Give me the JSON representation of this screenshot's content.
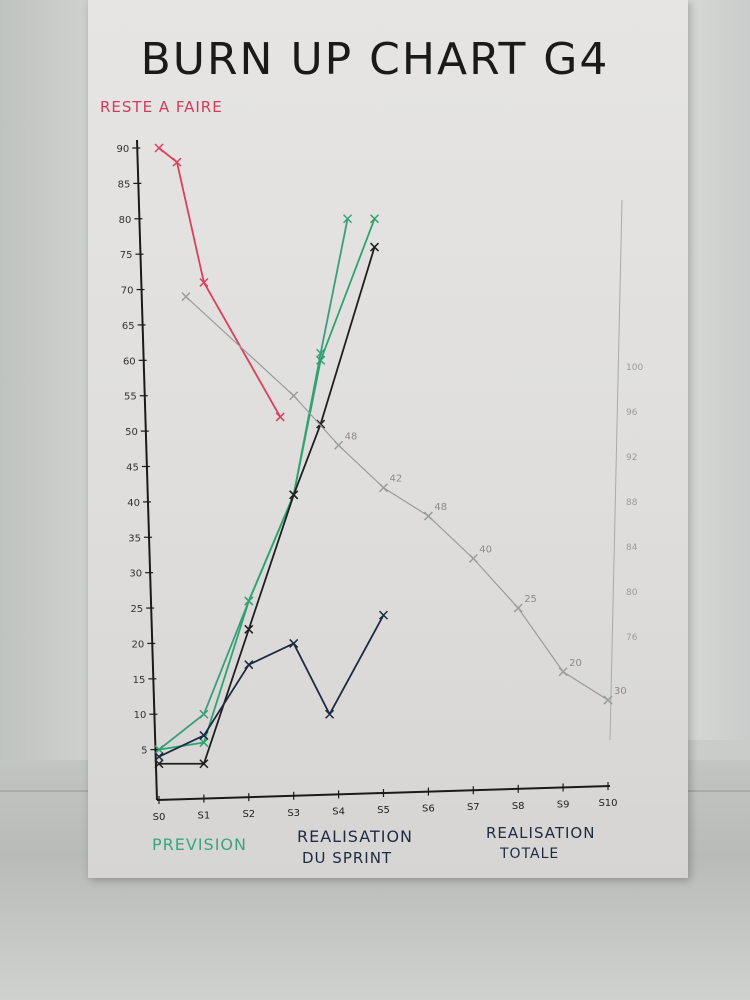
{
  "chart_data": {
    "type": "line",
    "title": "BURN UP CHART G4",
    "left_axis_label": "RESTE A FAIRE",
    "x": [
      "S0",
      "S1",
      "S2",
      "S3",
      "S4",
      "S5",
      "S6",
      "S7",
      "S8",
      "S9",
      "S10"
    ],
    "y_ticks": [
      5,
      10,
      15,
      20,
      25,
      30,
      35,
      40,
      45,
      50,
      55,
      60,
      65,
      70,
      75,
      80,
      85,
      90
    ],
    "ylim": [
      0,
      90
    ],
    "legend": {
      "prevision": "PREVISION",
      "realisation_sprint_line1": "REALISATION",
      "realisation_sprint_line2": "DU SPRINT",
      "realisation_totale_line1": "REALISATION",
      "realisation_totale_line2": "TOTALE"
    },
    "series": [
      {
        "color": "#d8405e",
        "points": [
          [
            0,
            90
          ],
          [
            0.4,
            88
          ],
          [
            1,
            71
          ],
          [
            2.7,
            52
          ]
        ]
      },
      {
        "color": "#3a9e7a",
        "points": [
          [
            0,
            5
          ],
          [
            1,
            10
          ],
          [
            2,
            26
          ],
          [
            3,
            41
          ],
          [
            3.6,
            61
          ],
          [
            4.2,
            80
          ]
        ]
      },
      {
        "color": "#2fa36f",
        "points": [
          [
            0,
            5
          ],
          [
            1,
            6
          ],
          [
            2,
            26
          ],
          [
            3,
            41
          ],
          [
            3.6,
            60
          ],
          [
            4.8,
            80
          ]
        ]
      },
      {
        "color": "#1f1f1f",
        "points": [
          [
            0,
            3
          ],
          [
            1,
            3
          ],
          [
            2,
            22
          ],
          [
            3,
            41
          ],
          [
            3.6,
            51
          ],
          [
            4.8,
            76
          ]
        ]
      },
      {
        "color": "#1e2a44",
        "points": [
          [
            0,
            4
          ],
          [
            1,
            7
          ],
          [
            2,
            17
          ],
          [
            3,
            20
          ],
          [
            3.8,
            10
          ],
          [
            5,
            24
          ]
        ]
      },
      {
        "color": "#9a9c9a",
        "points": [
          [
            0.6,
            69
          ],
          [
            3,
            55
          ],
          [
            4,
            48
          ],
          [
            5,
            42
          ],
          [
            6,
            38
          ],
          [
            7,
            32
          ],
          [
            8,
            25
          ],
          [
            9,
            16
          ],
          [
            10,
            12
          ]
        ]
      }
    ],
    "faint_labels": [
      "48",
      "42",
      "48",
      "40",
      "25",
      "20",
      "30"
    ],
    "right_ticks": [
      "100",
      "96",
      "92",
      "88",
      "84",
      "80",
      "76"
    ]
  }
}
